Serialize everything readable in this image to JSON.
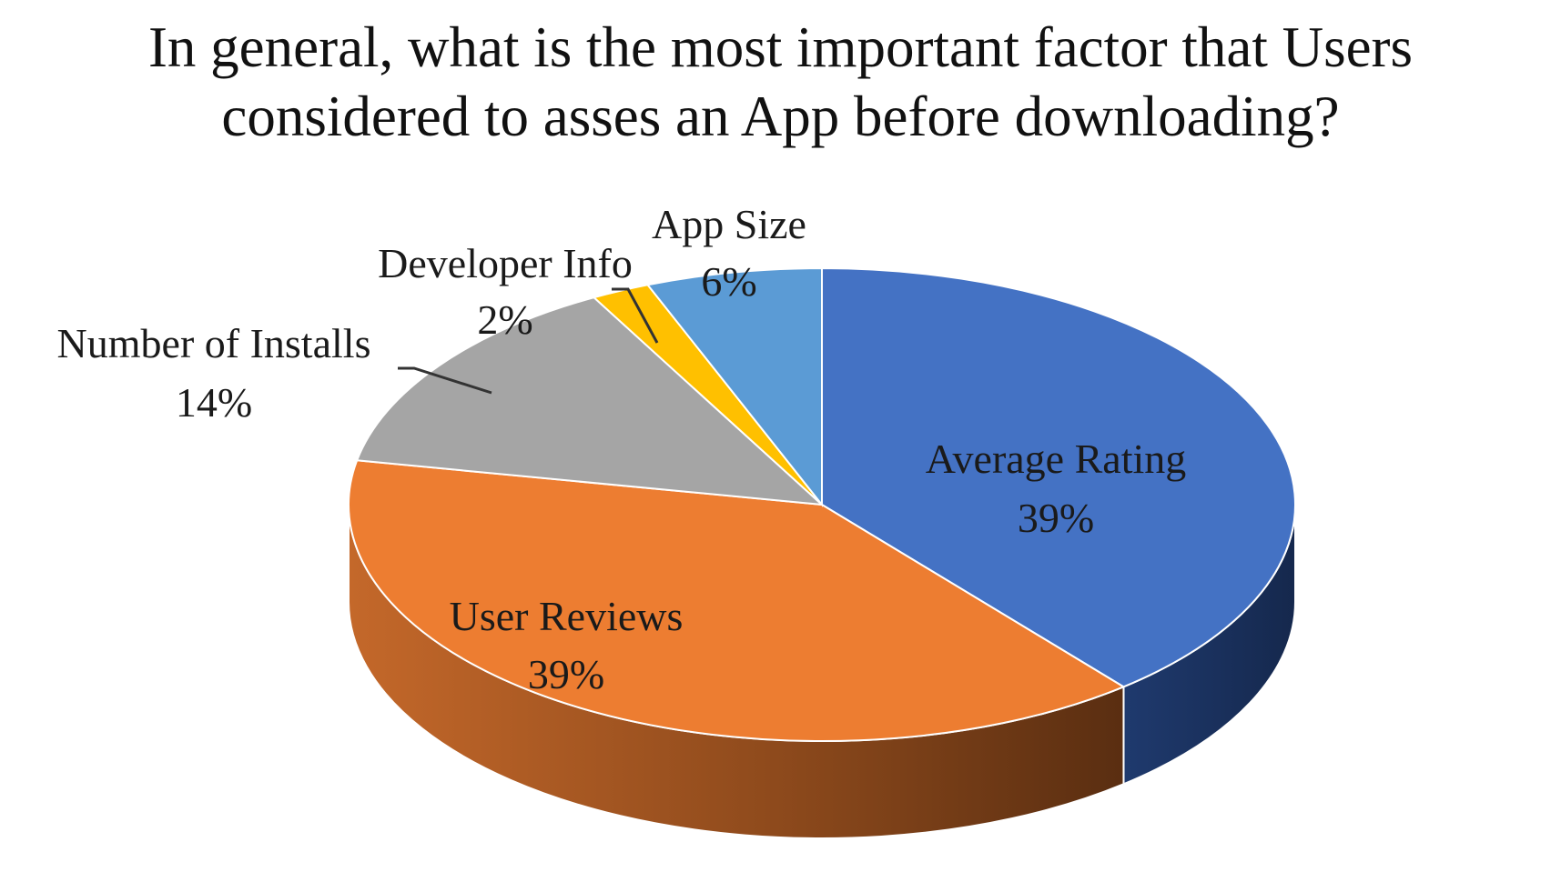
{
  "chart_data": {
    "type": "pie",
    "title_lines": [
      "In general, what is the most important factor that Users",
      "considered to asses an App before downloading?"
    ],
    "labels": [
      "Average Rating",
      "User Reviews",
      "Number of Installs",
      "Developer Info",
      "App Size"
    ],
    "values": [
      39,
      39,
      14,
      2,
      6
    ],
    "value_labels": [
      "39%",
      "39%",
      "14%",
      "2%",
      "6%"
    ],
    "colors": [
      "#4472C4",
      "#ED7D31",
      "#A5A5A5",
      "#FFC000",
      "#5B9BD5"
    ],
    "style": "3d",
    "legend": "none"
  }
}
